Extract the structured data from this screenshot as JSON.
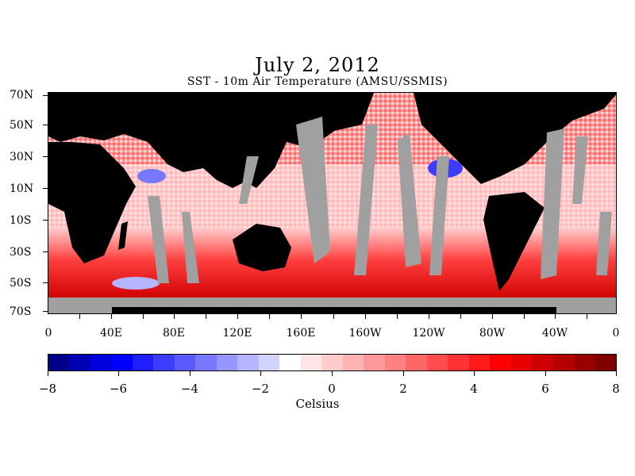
{
  "header": {
    "title": "July 2, 2012",
    "subtitle": "SST - 10m Air Temperature (AMSU/SSMIS)"
  },
  "map": {
    "lat_labels": [
      "70N",
      "50N",
      "30N",
      "10N",
      "10S",
      "30S",
      "50S",
      "70S"
    ],
    "lon_labels": [
      "0",
      "40E",
      "80E",
      "120E",
      "160E",
      "160W",
      "120W",
      "80W",
      "40W",
      "0"
    ],
    "colors": {
      "land": "#000000",
      "no_data": "#a0a0a0",
      "warm": "#e8000a",
      "cool": "#1c1cf0"
    }
  },
  "colorbar": {
    "min": -8,
    "max": 8,
    "tick_labels": [
      "−8",
      "−6",
      "−4",
      "−2",
      "0",
      "2",
      "4",
      "6",
      "8"
    ],
    "units_label": "Celsius",
    "colors": [
      "#00008b",
      "#0000b4",
      "#0000dc",
      "#0000ff",
      "#1e1eff",
      "#3c3cff",
      "#5a5aff",
      "#7878ff",
      "#9696ff",
      "#b4b4ff",
      "#d2d2ff",
      "#ffffff",
      "#ffe6e6",
      "#ffcccc",
      "#ffb3b3",
      "#ff9999",
      "#ff8080",
      "#ff6666",
      "#ff4d4d",
      "#ff3333",
      "#ff1a1a",
      "#ff0000",
      "#e60000",
      "#cc0000",
      "#b30000",
      "#990000",
      "#800000"
    ]
  }
}
